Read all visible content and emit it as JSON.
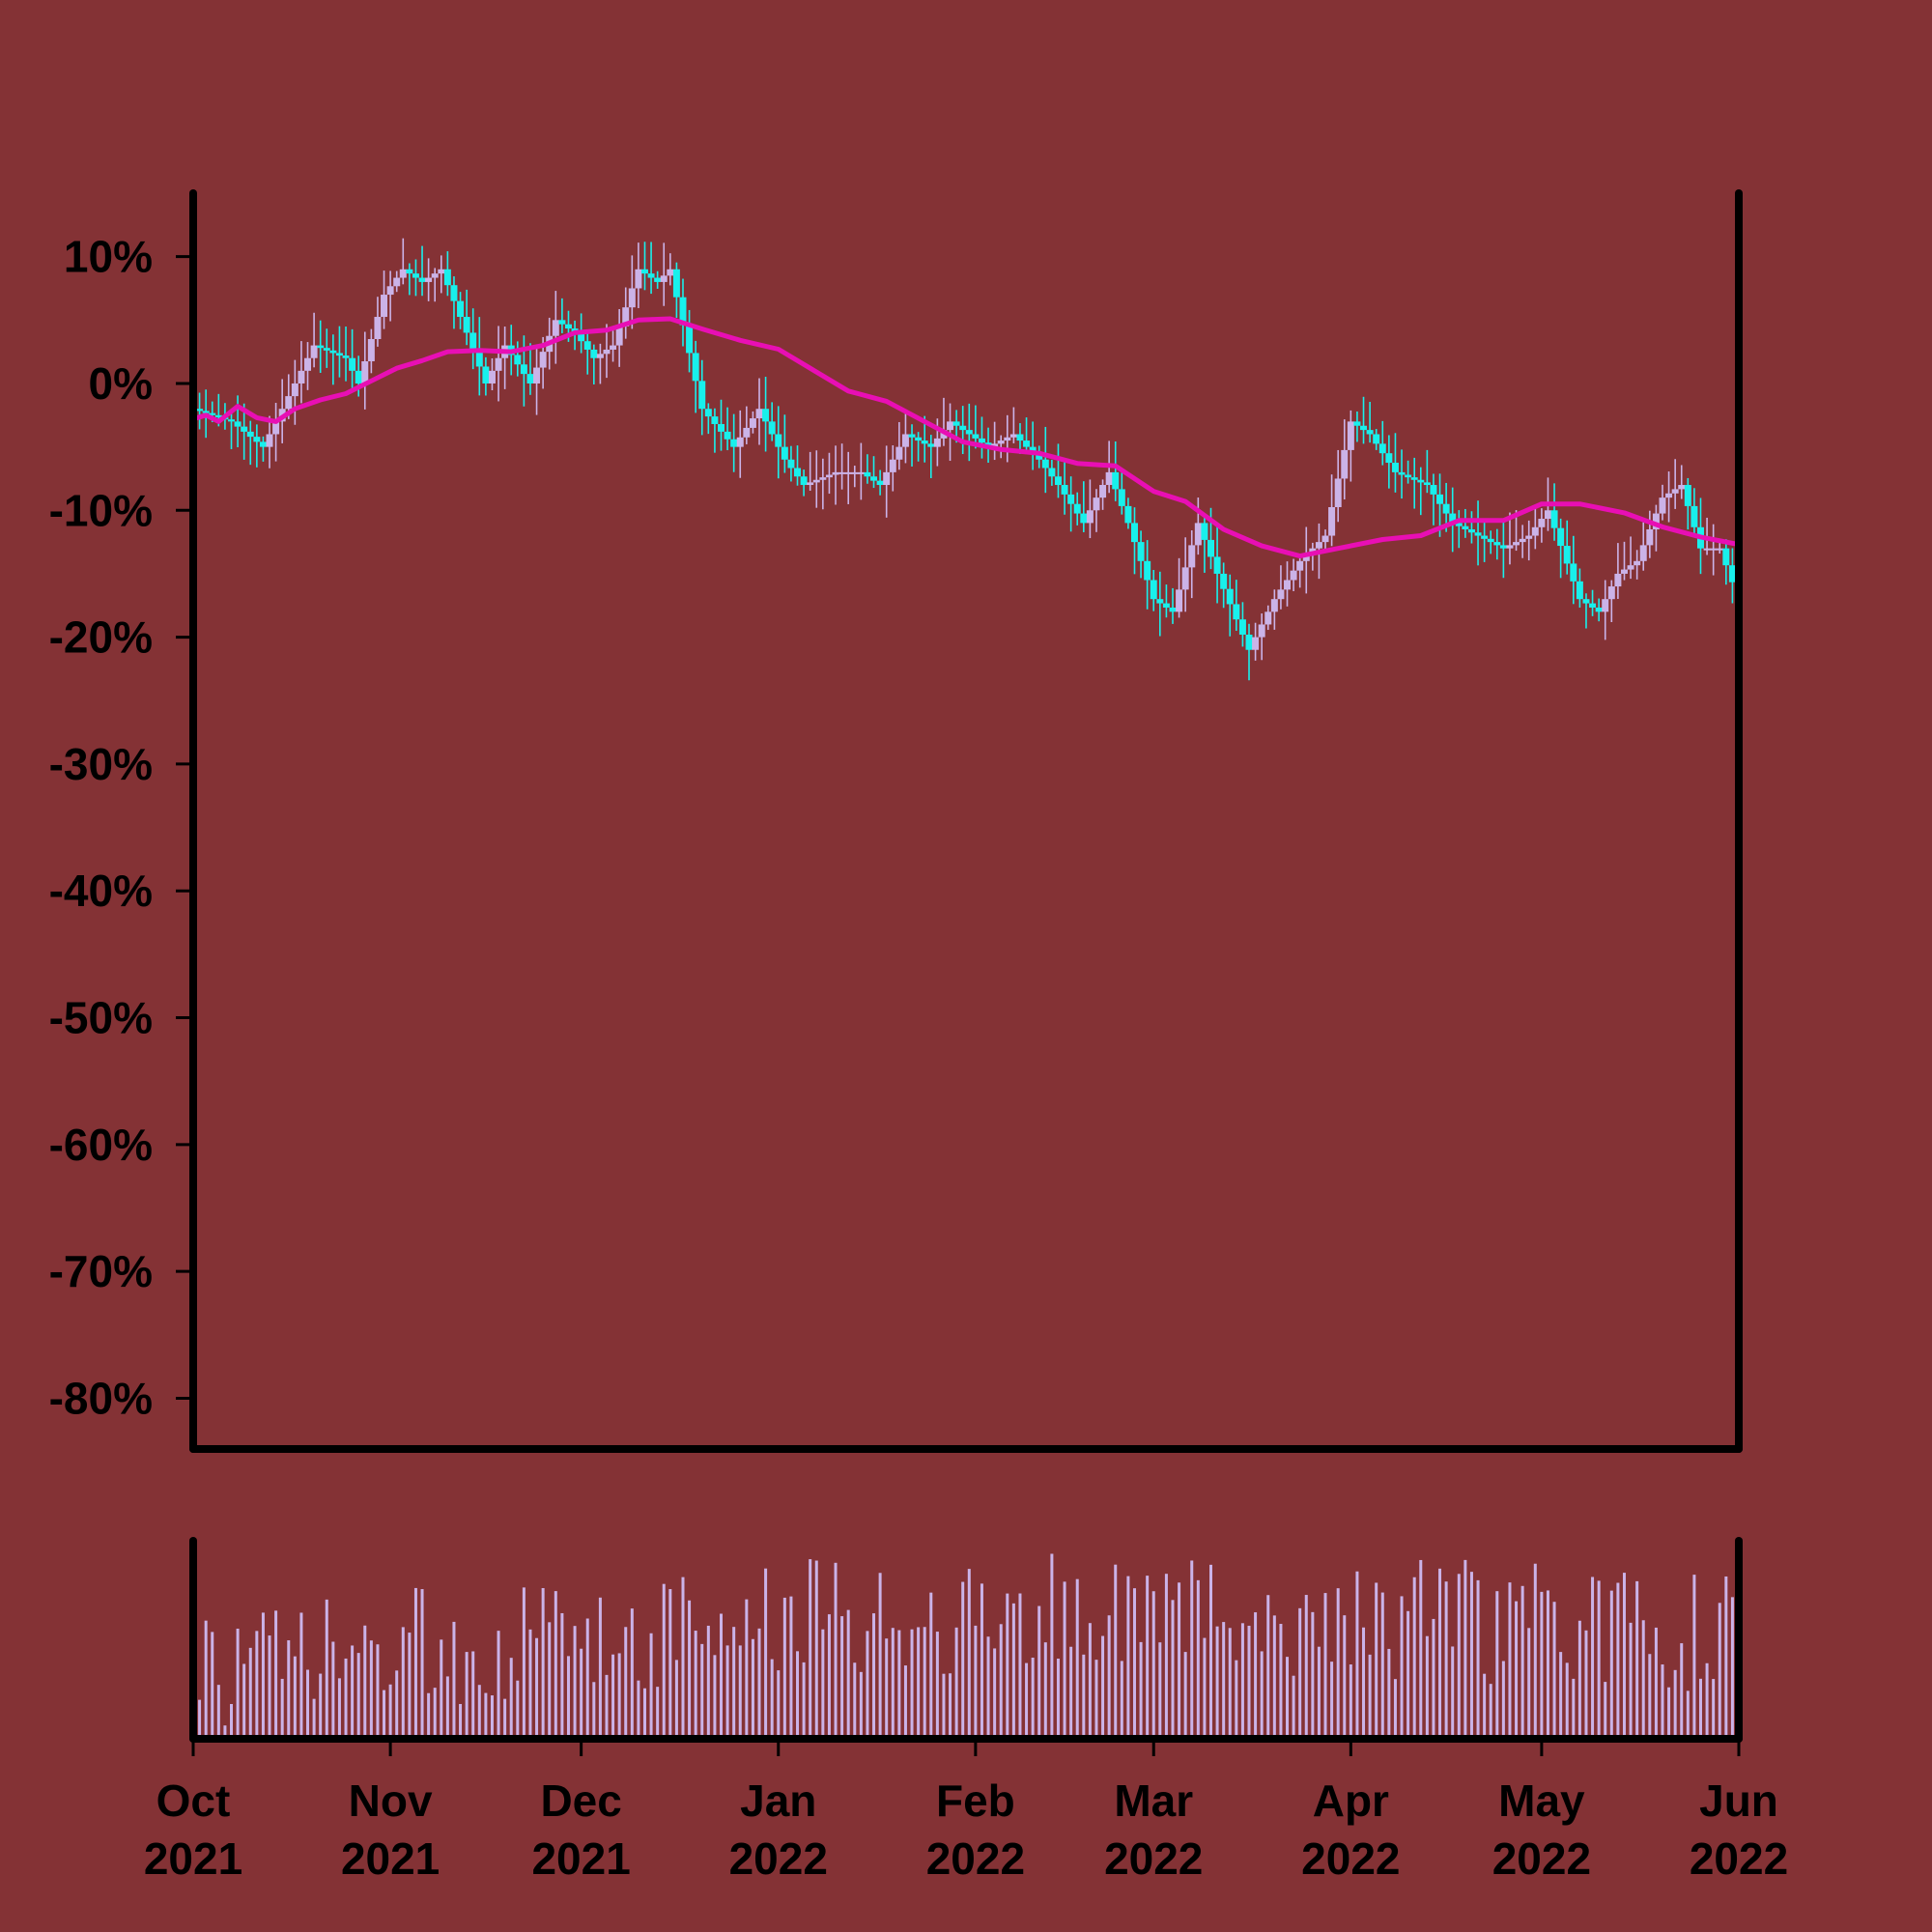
{
  "chart_data": {
    "type": "candlestick",
    "colors": {
      "background": "#843235",
      "axis": "#000000",
      "candle_up": "#cbb3e8",
      "candle_down": "#18f0ec",
      "moving_average": "#e80fb4",
      "volume": "#cbb3e8"
    },
    "price_axis": {
      "ylim": [
        -84,
        15
      ],
      "ticks": [
        10,
        0,
        -10,
        -20,
        -30,
        -40,
        -50,
        -60,
        -70,
        -80
      ],
      "tick_labels": [
        "10%",
        "0%",
        "-10%",
        "-20%",
        "-30%",
        "-40%",
        "-50%",
        "-60%",
        "-70%",
        "-80%"
      ]
    },
    "time_axis": {
      "start": "2021-10-01",
      "end": "2022-06-01",
      "ticks": [
        {
          "date": "2021-10-01",
          "month": "Oct",
          "year": "2021"
        },
        {
          "date": "2021-11-01",
          "month": "Nov",
          "year": "2021"
        },
        {
          "date": "2021-12-01",
          "month": "Dec",
          "year": "2021"
        },
        {
          "date": "2022-01-01",
          "month": "Jan",
          "year": "2022"
        },
        {
          "date": "2022-02-01",
          "month": "Feb",
          "year": "2022"
        },
        {
          "date": "2022-03-01",
          "month": "Mar",
          "year": "2022"
        },
        {
          "date": "2022-04-01",
          "month": "Apr",
          "year": "2022"
        },
        {
          "date": "2022-05-01",
          "month": "May",
          "year": "2022"
        },
        {
          "date": "2022-06-01",
          "month": "Jun",
          "year": "2022"
        }
      ]
    },
    "close_path": [
      [
        "2021-10-01",
        -2
      ],
      [
        "2021-10-07",
        -3
      ],
      [
        "2021-10-12",
        -5
      ],
      [
        "2021-10-17",
        0
      ],
      [
        "2021-10-20",
        3
      ],
      [
        "2021-10-25",
        2
      ],
      [
        "2021-10-27",
        0
      ],
      [
        "2021-10-31",
        7
      ],
      [
        "2021-11-03",
        9
      ],
      [
        "2021-11-06",
        8
      ],
      [
        "2021-11-09",
        9
      ],
      [
        "2021-11-13",
        4
      ],
      [
        "2021-11-16",
        0
      ],
      [
        "2021-11-19",
        3
      ],
      [
        "2021-11-23",
        0
      ],
      [
        "2021-11-27",
        5
      ],
      [
        "2021-11-30",
        4
      ],
      [
        "2021-12-03",
        2
      ],
      [
        "2021-12-06",
        3
      ],
      [
        "2021-12-10",
        9
      ],
      [
        "2021-12-13",
        8
      ],
      [
        "2021-12-15",
        9
      ],
      [
        "2021-12-20",
        -2
      ],
      [
        "2021-12-25",
        -5
      ],
      [
        "2021-12-29",
        -2
      ],
      [
        "2022-01-02",
        -6
      ],
      [
        "2022-01-05",
        -8
      ],
      [
        "2022-01-10",
        -7
      ],
      [
        "2022-01-14",
        -7
      ],
      [
        "2022-01-17",
        -8
      ],
      [
        "2022-01-21",
        -4
      ],
      [
        "2022-01-25",
        -5
      ],
      [
        "2022-01-28",
        -3
      ],
      [
        "2022-01-31",
        -4
      ],
      [
        "2022-02-03",
        -5
      ],
      [
        "2022-02-07",
        -4
      ],
      [
        "2022-02-11",
        -6
      ],
      [
        "2022-02-14",
        -8
      ],
      [
        "2022-02-18",
        -11
      ],
      [
        "2022-02-22",
        -7
      ],
      [
        "2022-02-25",
        -11
      ],
      [
        "2022-03-01",
        -17
      ],
      [
        "2022-03-04",
        -18
      ],
      [
        "2022-03-08",
        -11
      ],
      [
        "2022-03-11",
        -15
      ],
      [
        "2022-03-16",
        -21
      ],
      [
        "2022-03-20",
        -17
      ],
      [
        "2022-03-24",
        -14
      ],
      [
        "2022-03-28",
        -12
      ],
      [
        "2022-04-01",
        -3
      ],
      [
        "2022-04-04",
        -4
      ],
      [
        "2022-04-08",
        -7
      ],
      [
        "2022-04-13",
        -8
      ],
      [
        "2022-04-17",
        -11
      ],
      [
        "2022-04-21",
        -12
      ],
      [
        "2022-04-25",
        -13
      ],
      [
        "2022-04-29",
        -12
      ],
      [
        "2022-05-02",
        -10
      ],
      [
        "2022-05-07",
        -17
      ],
      [
        "2022-05-10",
        -18
      ],
      [
        "2022-05-13",
        -15
      ],
      [
        "2022-05-16",
        -14
      ],
      [
        "2022-05-20",
        -9
      ],
      [
        "2022-05-23",
        -8
      ],
      [
        "2022-05-26",
        -13
      ],
      [
        "2022-05-29",
        -13
      ],
      [
        "2022-06-01",
        -17
      ]
    ],
    "moving_average": [
      [
        "2021-10-01",
        -2.8
      ],
      [
        "2021-10-03",
        -2.5
      ],
      [
        "2021-10-05",
        -3.0
      ],
      [
        "2021-10-08",
        -1.8
      ],
      [
        "2021-10-11",
        -2.7
      ],
      [
        "2021-10-14",
        -3.0
      ],
      [
        "2021-10-17",
        -2.0
      ],
      [
        "2021-10-21",
        -1.3
      ],
      [
        "2021-10-25",
        -0.8
      ],
      [
        "2021-10-29",
        0.2
      ],
      [
        "2021-11-02",
        1.2
      ],
      [
        "2021-11-06",
        1.8
      ],
      [
        "2021-11-10",
        2.5
      ],
      [
        "2021-11-15",
        2.6
      ],
      [
        "2021-11-20",
        2.5
      ],
      [
        "2021-11-25",
        3.0
      ],
      [
        "2021-11-30",
        4.0
      ],
      [
        "2021-12-05",
        4.2
      ],
      [
        "2021-12-10",
        5.0
      ],
      [
        "2021-12-15",
        5.1
      ],
      [
        "2021-12-20",
        4.3
      ],
      [
        "2021-12-26",
        3.4
      ],
      [
        "2022-01-01",
        2.7
      ],
      [
        "2022-01-06",
        1.2
      ],
      [
        "2022-01-12",
        -0.6
      ],
      [
        "2022-01-18",
        -1.4
      ],
      [
        "2022-01-24",
        -3.0
      ],
      [
        "2022-01-30",
        -4.6
      ],
      [
        "2022-02-05",
        -5.2
      ],
      [
        "2022-02-11",
        -5.5
      ],
      [
        "2022-02-17",
        -6.3
      ],
      [
        "2022-02-23",
        -6.5
      ],
      [
        "2022-03-01",
        -8.5
      ],
      [
        "2022-03-06",
        -9.3
      ],
      [
        "2022-03-12",
        -11.5
      ],
      [
        "2022-03-18",
        -12.8
      ],
      [
        "2022-03-24",
        -13.6
      ],
      [
        "2022-03-30",
        -13.0
      ],
      [
        "2022-04-06",
        -12.3
      ],
      [
        "2022-04-12",
        -12.0
      ],
      [
        "2022-04-18",
        -10.8
      ],
      [
        "2022-04-25",
        -10.8
      ],
      [
        "2022-05-01",
        -9.5
      ],
      [
        "2022-05-07",
        -9.5
      ],
      [
        "2022-05-14",
        -10.2
      ],
      [
        "2022-05-20",
        -11.3
      ],
      [
        "2022-05-26",
        -12.1
      ],
      [
        "2022-06-01",
        -12.7
      ]
    ],
    "candle_seed": 20211001,
    "volume_seed": 73,
    "volume_max_fraction": 0.96
  }
}
